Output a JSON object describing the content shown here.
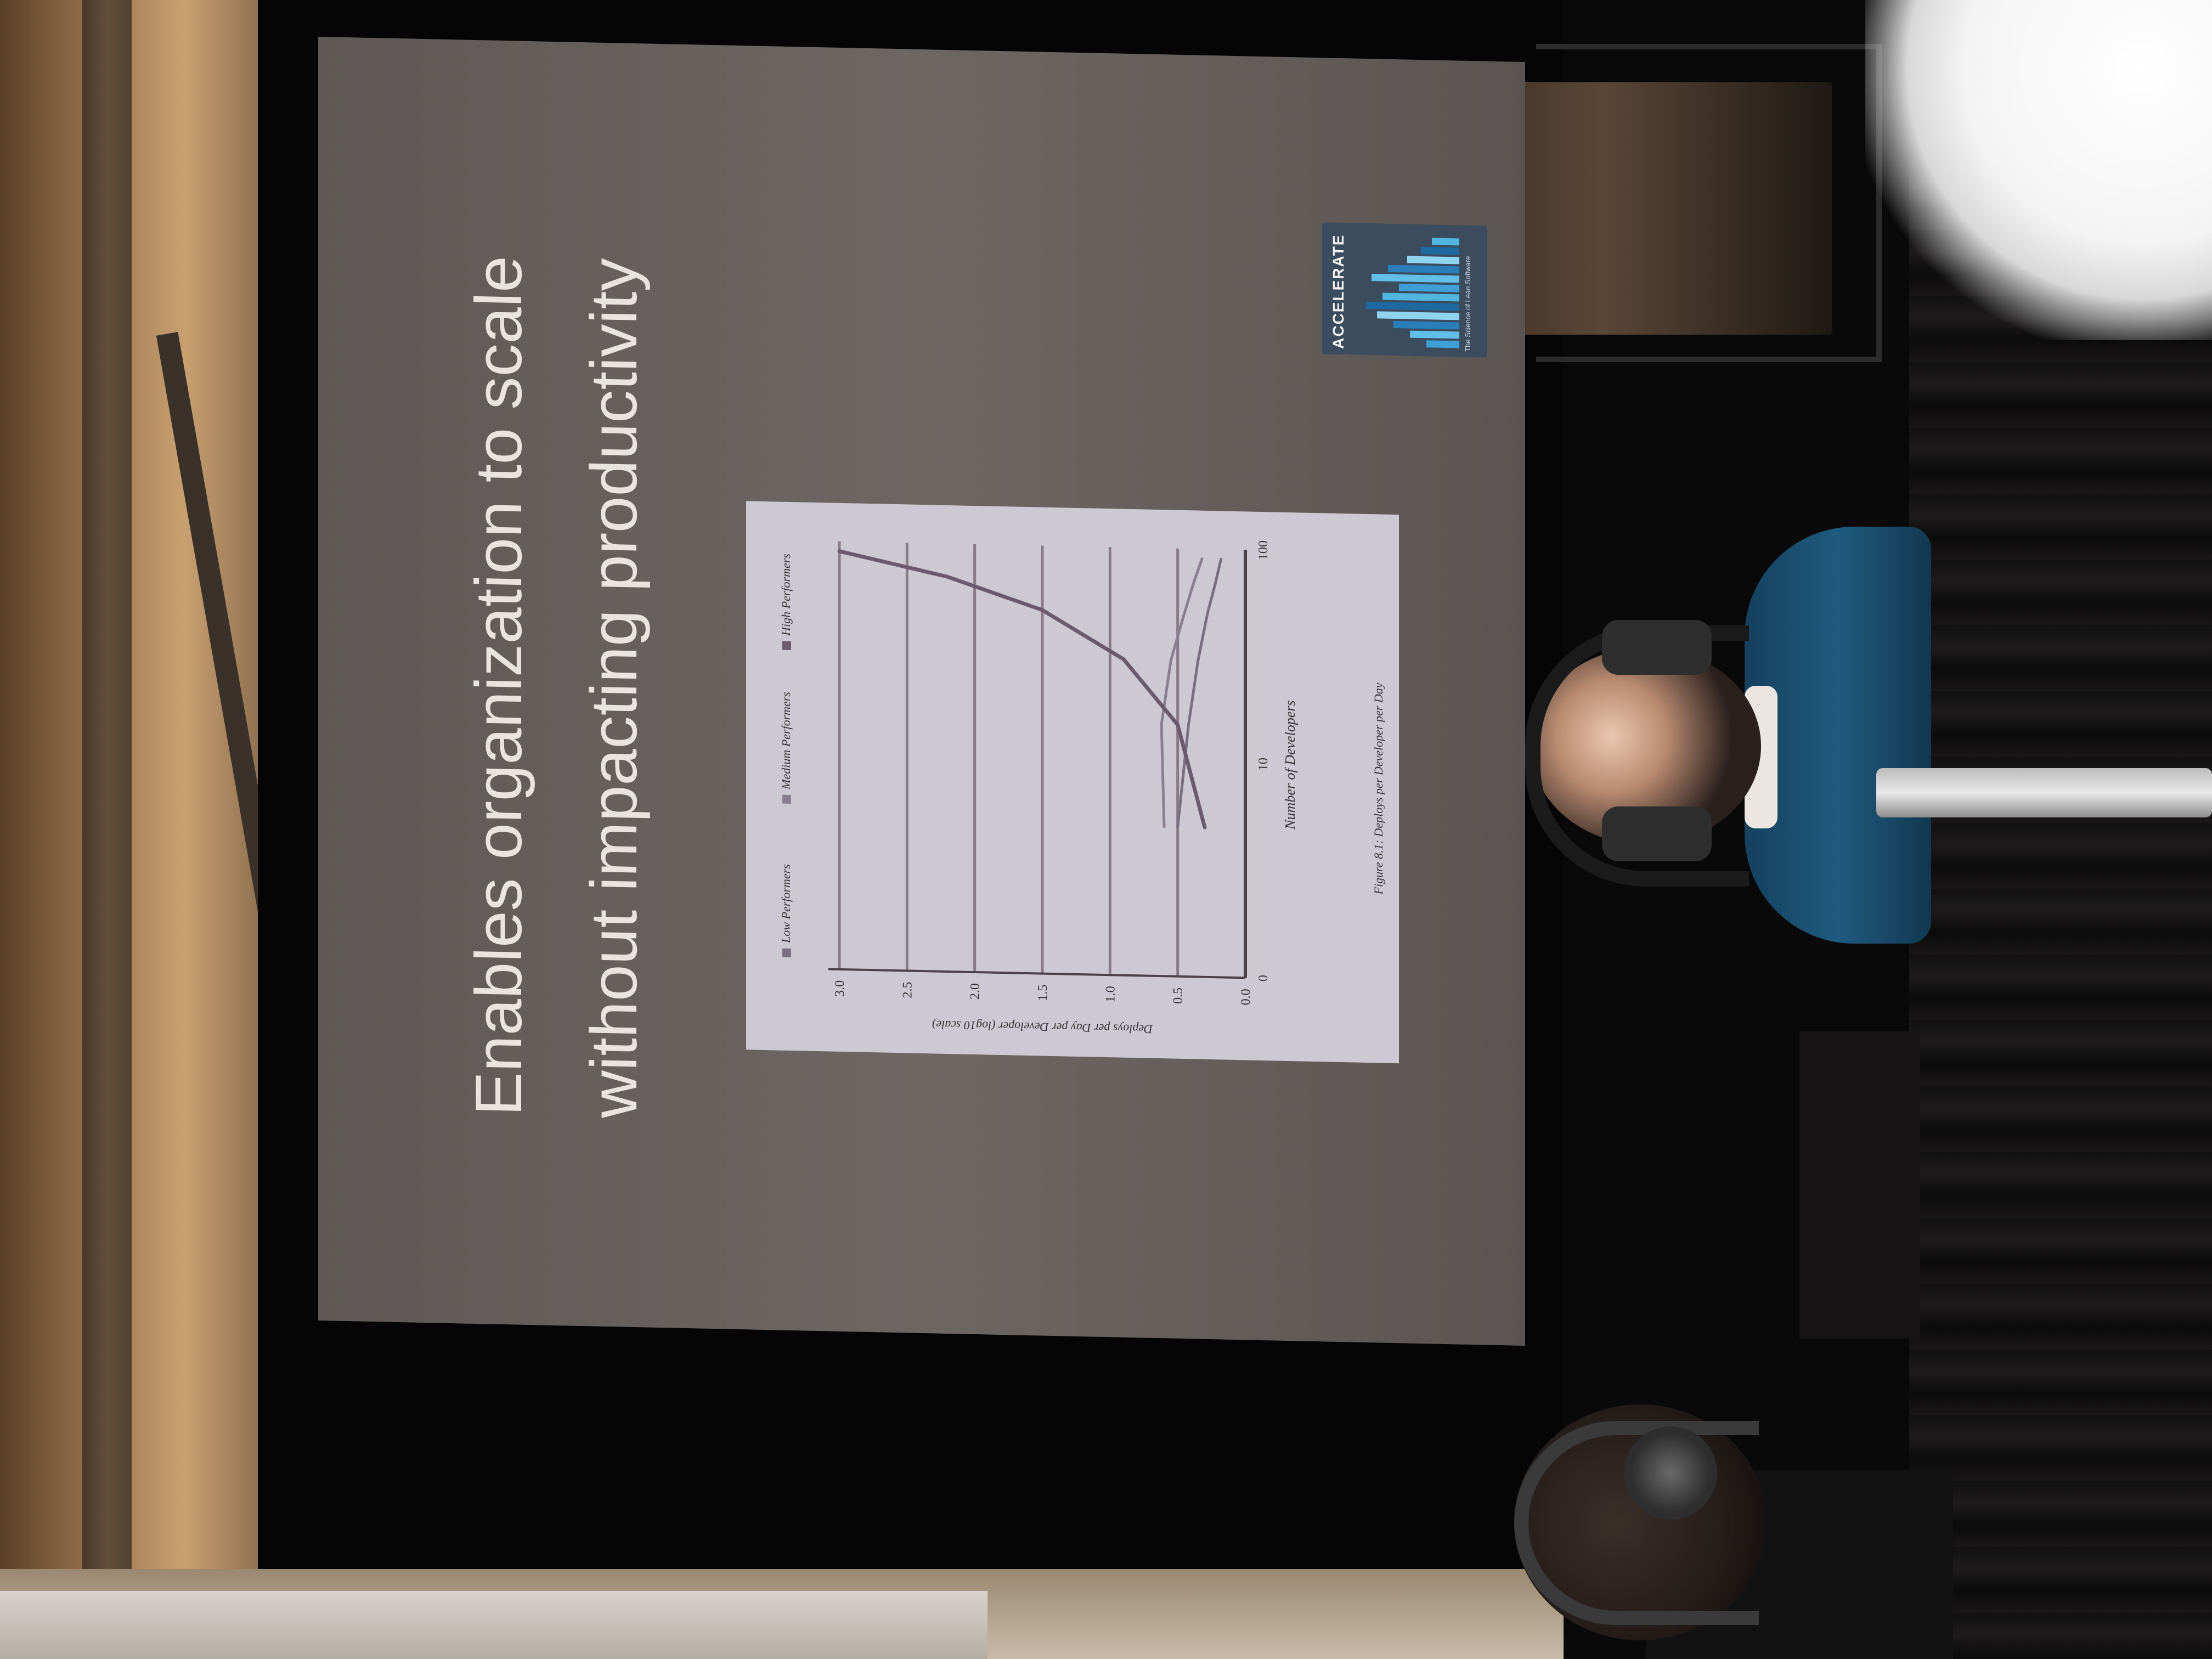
{
  "slide": {
    "title_line_1": "Enables organization to scale",
    "title_line_2": "without impacting productivity"
  },
  "chart_data": {
    "type": "line",
    "title": "",
    "caption": "Figure 8.1: Deploys per Developer per Day",
    "xlabel": "Number of Developers",
    "ylabel": "Deploys per Day per Developer (log10 scale)",
    "x_ticks": [
      "0",
      "10",
      "100"
    ],
    "y_ticks": [
      "0.0",
      "0.5",
      "1.0",
      "1.5",
      "2.0",
      "2.5",
      "3.0"
    ],
    "legend_placement": "top",
    "series": [
      {
        "name": "Low Performers",
        "color": "#7a6f80",
        "x": [
          5,
          15,
          30,
          50,
          70,
          90
        ],
        "y": [
          0.5,
          0.42,
          0.35,
          0.28,
          0.22,
          0.18
        ]
      },
      {
        "name": "Medium Performers",
        "color": "#8a7f90",
        "x": [
          5,
          15,
          30,
          50,
          70,
          90
        ],
        "y": [
          0.6,
          0.62,
          0.55,
          0.45,
          0.38,
          0.32
        ]
      },
      {
        "name": "High Performers",
        "color": "#6b5a6e",
        "x": [
          5,
          15,
          30,
          50,
          70,
          90
        ],
        "y": [
          0.3,
          0.5,
          0.9,
          1.5,
          2.2,
          3.0
        ]
      }
    ]
  },
  "logo": {
    "name": "ACCELERATE",
    "subtitle": "The Science of Lean Software"
  }
}
